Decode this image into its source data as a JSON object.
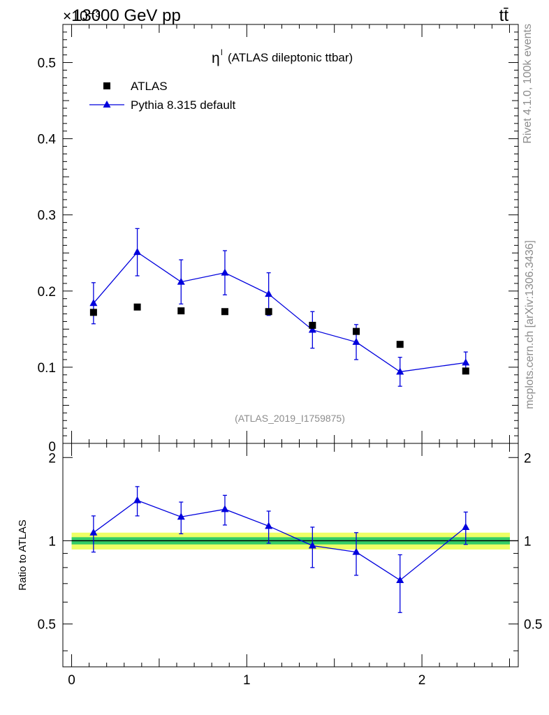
{
  "header": {
    "energy_label": "13000 GeV pp",
    "process_label": "tt̄",
    "exponent_label": "×10⁻³"
  },
  "side": {
    "rivet_label": "Rivet 4.1.0,  100k events",
    "mcplots_label": "mcplots.cern.ch [arXiv:1306.3436]"
  },
  "colors": {
    "mc": "#0000dd",
    "data": "#000000",
    "band_inner": "#33cc66",
    "band_outer": "#eeff66",
    "watermark": "#8c8c8c"
  },
  "chart_data": [
    {
      "id": "main",
      "type": "scatter",
      "title_symbol": "η",
      "title_sup": "l",
      "title": "(ATLAS dileptonic ttbar)",
      "watermark": "(ATLAS_2019_I1759875)",
      "xlim": [
        -0.05,
        2.55
      ],
      "ylim": [
        0,
        0.55
      ],
      "y_scale_note": "×10⁻³",
      "yticks": [
        0.1,
        0.2,
        0.3,
        0.4,
        0.5
      ],
      "ytick_labels": [
        "0.1",
        "0.2",
        "0.3",
        "0.4",
        "0.5"
      ],
      "y_zero_label": "0",
      "legend": [
        {
          "name": "ATLAS",
          "marker": "square"
        },
        {
          "name": "Pythia 8.315 default",
          "marker": "triangle"
        }
      ],
      "series": [
        {
          "name": "ATLAS",
          "x": [
            0.125,
            0.375,
            0.625,
            0.875,
            1.125,
            1.375,
            1.625,
            1.875,
            2.25
          ],
          "values": [
            0.172,
            0.179,
            0.174,
            0.173,
            0.173,
            0.155,
            0.147,
            0.13,
            0.095
          ]
        },
        {
          "name": "Pythia 8.315 default",
          "x": [
            0.125,
            0.375,
            0.625,
            0.875,
            1.125,
            1.375,
            1.625,
            1.875,
            2.25
          ],
          "values": [
            0.184,
            0.251,
            0.212,
            0.224,
            0.196,
            0.149,
            0.133,
            0.094,
            0.106
          ],
          "err_low": [
            0.027,
            0.031,
            0.029,
            0.029,
            0.028,
            0.024,
            0.023,
            0.019,
            0.014
          ],
          "err_high": [
            0.027,
            0.031,
            0.029,
            0.029,
            0.028,
            0.024,
            0.023,
            0.019,
            0.014
          ]
        }
      ]
    },
    {
      "id": "ratio",
      "type": "line",
      "ylabel": "Ratio to ATLAS",
      "xlim": [
        -0.05,
        2.55
      ],
      "ylim": [
        0.35,
        2.25
      ],
      "yticks": [
        0.5,
        1,
        2
      ],
      "ytick_labels": [
        "0.5",
        "1",
        "2"
      ],
      "xticks": [
        0,
        1,
        2
      ],
      "xtick_labels": [
        "0",
        "1",
        "2"
      ],
      "band_inner_halfwidth": 0.03,
      "band_outer_halfwidth": 0.07,
      "series": [
        {
          "name": "Pythia 8.315 default",
          "x": [
            0.125,
            0.375,
            0.625,
            0.875,
            1.125,
            1.375,
            1.625,
            1.875,
            2.25
          ],
          "values": [
            1.07,
            1.4,
            1.22,
            1.3,
            1.13,
            0.96,
            0.91,
            0.72,
            1.12
          ],
          "err_low": [
            0.16,
            0.17,
            0.16,
            0.16,
            0.15,
            0.16,
            0.16,
            0.17,
            0.15
          ],
          "err_high": [
            0.16,
            0.17,
            0.16,
            0.16,
            0.15,
            0.16,
            0.16,
            0.17,
            0.15
          ]
        }
      ]
    }
  ]
}
